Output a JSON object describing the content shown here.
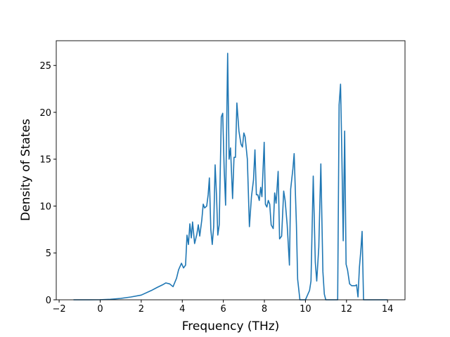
{
  "chart_data": {
    "type": "line",
    "x_label": "Frequency (THz)",
    "y_label": "Density of States",
    "xlim": [
      -2.14,
      14.85
    ],
    "ylim": [
      0,
      27.64
    ],
    "xticks": [
      {
        "value": -2,
        "label": "−2"
      },
      0,
      2,
      4,
      6,
      8,
      10,
      12,
      14
    ],
    "yticks": [
      0,
      5,
      10,
      15,
      20,
      25
    ],
    "series": [
      {
        "color": "#1f77b4",
        "x": [
          -1.3,
          -0.5,
          0,
          0.5,
          1,
          1.5,
          2,
          2.5,
          2.76,
          3.04,
          3.2,
          3.38,
          3.55,
          3.72,
          3.82,
          3.96,
          4.06,
          4.16,
          4.23,
          4.3,
          4.37,
          4.44,
          4.5,
          4.6,
          4.71,
          4.78,
          4.85,
          4.95,
          5.02,
          5.09,
          5.19,
          5.26,
          5.32,
          5.39,
          5.46,
          5.53,
          5.6,
          5.67,
          5.73,
          5.8,
          5.9,
          5.97,
          6.04,
          6.11,
          6.21,
          6.28,
          6.35,
          6.45,
          6.52,
          6.59,
          6.66,
          6.76,
          6.86,
          6.93,
          7.0,
          7.06,
          7.17,
          7.27,
          7.37,
          7.47,
          7.54,
          7.61,
          7.68,
          7.75,
          7.82,
          7.88,
          7.99,
          8.05,
          8.12,
          8.19,
          8.26,
          8.33,
          8.43,
          8.5,
          8.57,
          8.67,
          8.74,
          8.84,
          8.94,
          9.01,
          9.11,
          9.22,
          9.28,
          9.39,
          9.45,
          9.56,
          9.62,
          9.73,
          10,
          10.1,
          10.2,
          10.27,
          10.38,
          10.48,
          10.55,
          10.65,
          10.75,
          10.85,
          10.92,
          10.99,
          11.57,
          11.64,
          11.71,
          11.77,
          11.84,
          11.91,
          11.98,
          12.05,
          12.15,
          12.25,
          12.42,
          12.49,
          12.56,
          12.63,
          12.7,
          12.76,
          12.83,
          14
        ],
        "values": [
          0,
          0,
          0.01,
          0.05,
          0.15,
          0.3,
          0.5,
          1.0,
          1.3,
          1.6,
          1.8,
          1.7,
          1.4,
          2.3,
          3.2,
          3.9,
          3.4,
          3.7,
          6.9,
          5.9,
          8.1,
          6.6,
          8.3,
          6.0,
          7.0,
          8.0,
          6.8,
          8.5,
          10.2,
          9.8,
          10.0,
          11.2,
          13.0,
          7.5,
          5.9,
          7.8,
          14.4,
          11.0,
          6.9,
          8.0,
          19.5,
          19.9,
          14.0,
          10.1,
          26.3,
          15.0,
          16.2,
          10.8,
          15.2,
          15.2,
          21.0,
          18.0,
          16.6,
          16.3,
          17.8,
          17.4,
          15.0,
          7.8,
          11.0,
          12.8,
          16.0,
          11.2,
          11.2,
          10.6,
          12.0,
          11.0,
          16.8,
          10.2,
          9.9,
          10.6,
          10.2,
          8.0,
          7.6,
          11.4,
          10.3,
          13.7,
          6.5,
          6.8,
          11.6,
          10.6,
          8.0,
          3.7,
          11.8,
          14.0,
          15.6,
          8.0,
          2.2,
          0,
          0,
          0.5,
          1.0,
          2.0,
          13.2,
          4.0,
          2.0,
          5.6,
          14.5,
          3.0,
          0.6,
          0,
          0,
          20.8,
          23.0,
          16.0,
          6.3,
          18.0,
          3.8,
          3.2,
          1.7,
          1.5,
          1.5,
          1.6,
          0.3,
          3.5,
          5.3,
          7.3,
          0,
          0
        ]
      }
    ]
  }
}
